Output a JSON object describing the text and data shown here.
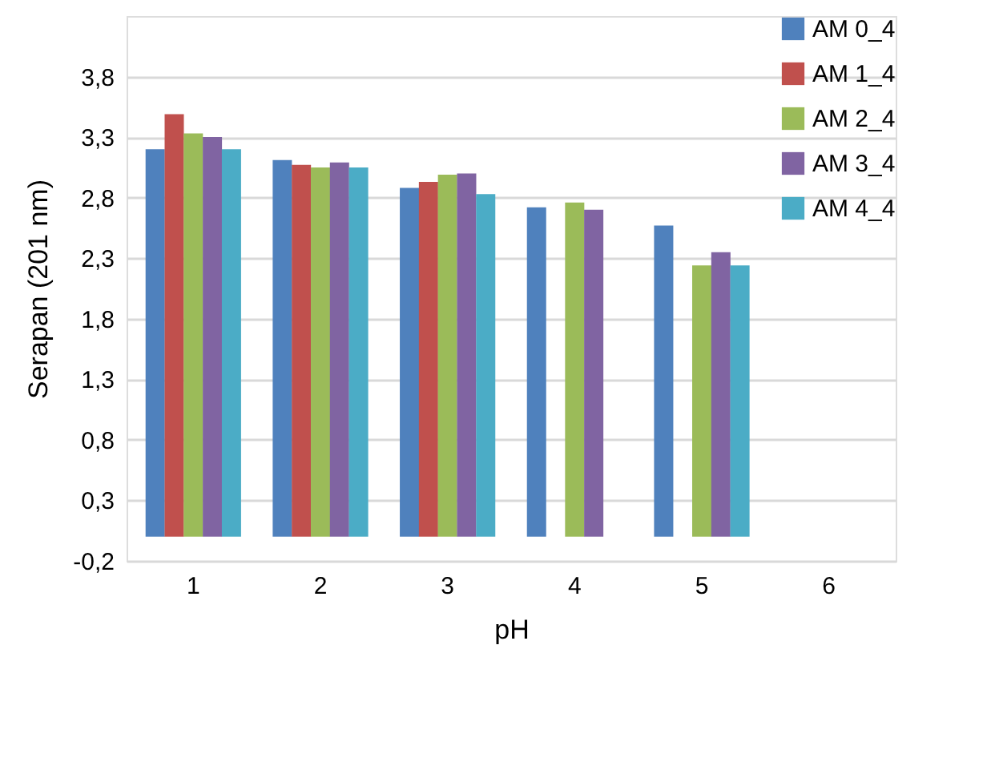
{
  "chart_data": {
    "type": "bar",
    "xlabel": "pH",
    "ylabel": "Serapan (201 nm)",
    "categories": [
      "1",
      "2",
      "3",
      "4",
      "5",
      "6"
    ],
    "series": [
      {
        "name": "AM 0_4",
        "color": "#4f81bd",
        "values": [
          3.2,
          3.11,
          2.88,
          2.72,
          2.57,
          null
        ]
      },
      {
        "name": "AM 1_4",
        "color": "#c0504d",
        "values": [
          3.49,
          3.07,
          2.93,
          null,
          null,
          null
        ]
      },
      {
        "name": "AM 2_4",
        "color": "#9bbb59",
        "values": [
          3.33,
          3.05,
          2.99,
          2.76,
          2.24,
          null
        ]
      },
      {
        "name": "AM 3_4",
        "color": "#8064a2",
        "values": [
          3.3,
          3.09,
          3.0,
          2.7,
          2.35,
          null
        ]
      },
      {
        "name": "AM 4_4",
        "color": "#4bacc6",
        "values": [
          3.2,
          3.05,
          2.83,
          null,
          2.24,
          null
        ]
      }
    ],
    "ylim": [
      -0.2,
      4.3
    ],
    "yticks": [
      {
        "value": -0.2,
        "label": "-0,2"
      },
      {
        "value": 0.3,
        "label": "0,3"
      },
      {
        "value": 0.8,
        "label": "0,8"
      },
      {
        "value": 1.3,
        "label": "1,3"
      },
      {
        "value": 1.8,
        "label": "1,8"
      },
      {
        "value": 2.3,
        "label": "2,3"
      },
      {
        "value": 2.8,
        "label": "2,8"
      },
      {
        "value": 3.3,
        "label": "3,3"
      },
      {
        "value": 3.8,
        "label": "3,8"
      }
    ],
    "grid": "y",
    "legend": "top right"
  }
}
